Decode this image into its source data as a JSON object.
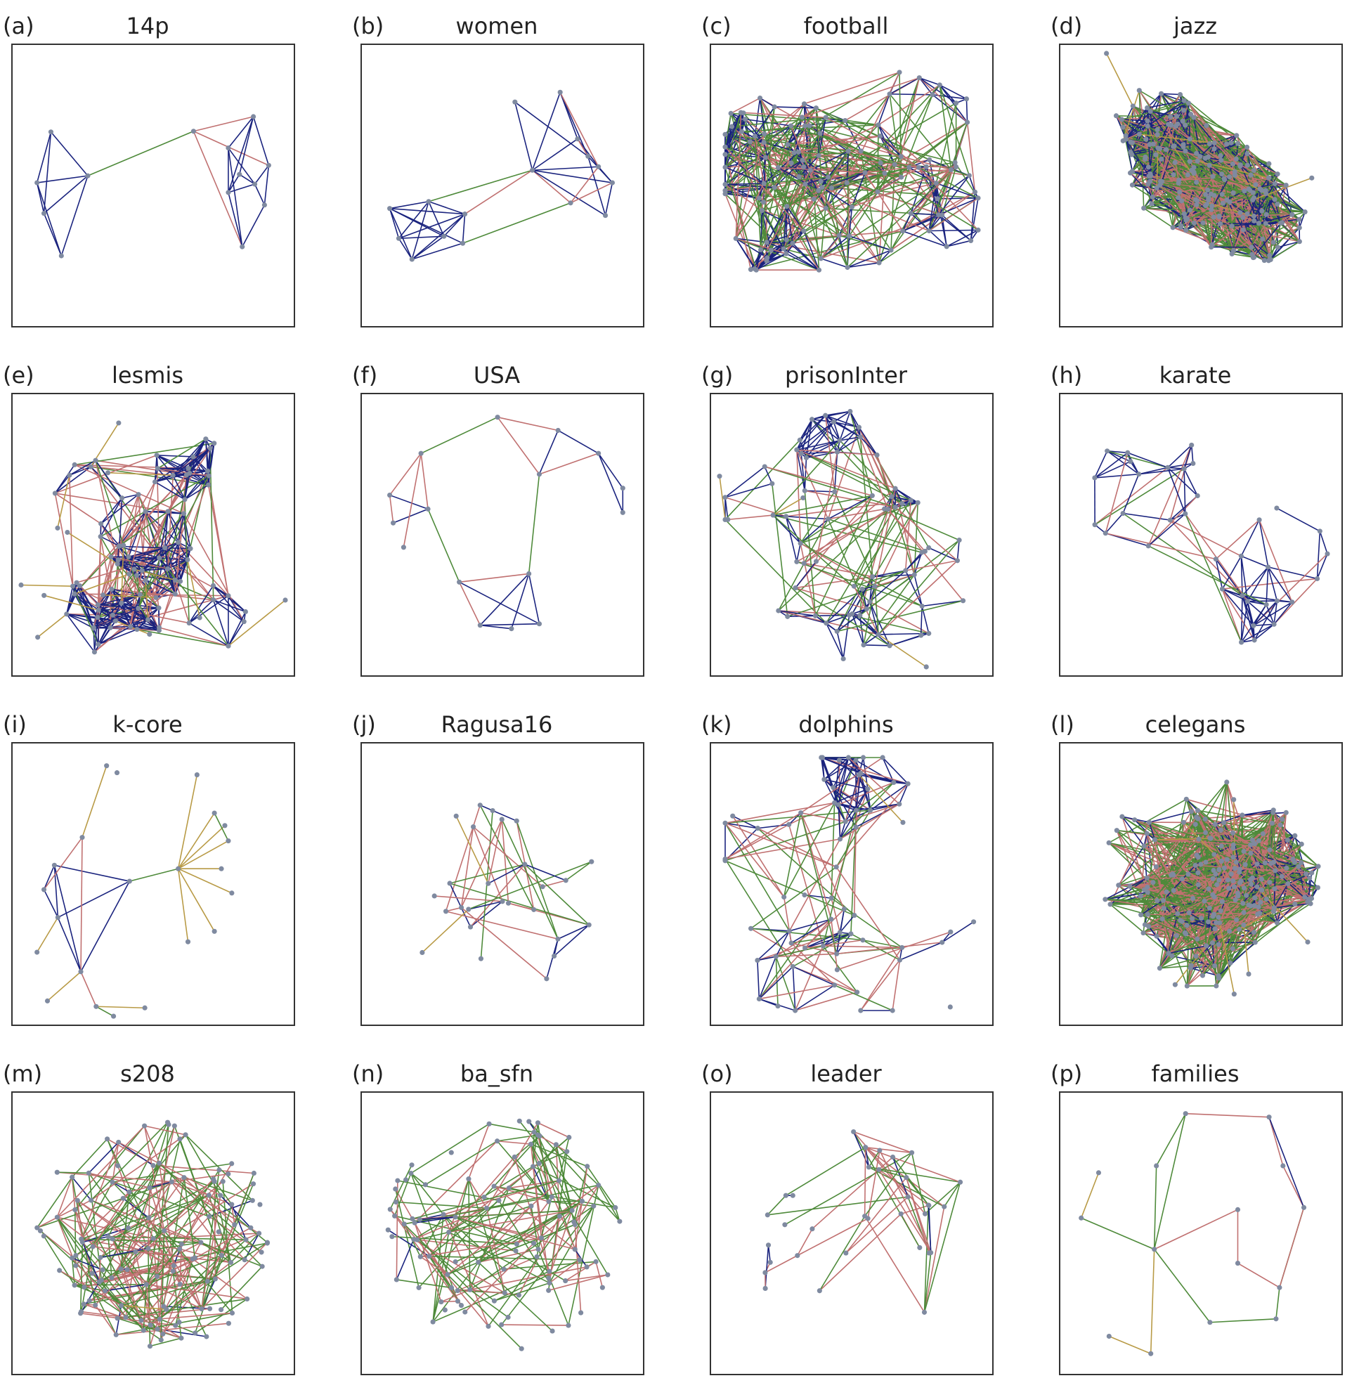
{
  "figure": {
    "edge_colors": {
      "intra": "#1a237e",
      "inter_red": "#c07070",
      "inter_green": "#4e8a3a",
      "pendant": "#b89a45"
    },
    "node_color": "#7f8aa0",
    "panels": [
      {
        "letter": "(a)",
        "title": "14p"
      },
      {
        "letter": "(b)",
        "title": "women"
      },
      {
        "letter": "(c)",
        "title": "football"
      },
      {
        "letter": "(d)",
        "title": "jazz"
      },
      {
        "letter": "(e)",
        "title": "lesmis"
      },
      {
        "letter": "(f)",
        "title": "USA"
      },
      {
        "letter": "(g)",
        "title": "prisonInter"
      },
      {
        "letter": "(h)",
        "title": "karate"
      },
      {
        "letter": "(i)",
        "title": "k-core"
      },
      {
        "letter": "(j)",
        "title": "Ragusa16"
      },
      {
        "letter": "(k)",
        "title": "dolphins"
      },
      {
        "letter": "(l)",
        "title": "celegans"
      },
      {
        "letter": "(m)",
        "title": "s208"
      },
      {
        "letter": "(n)",
        "title": "ba_sfn"
      },
      {
        "letter": "(o)",
        "title": "leader"
      },
      {
        "letter": "(p)",
        "title": "families"
      }
    ]
  }
}
